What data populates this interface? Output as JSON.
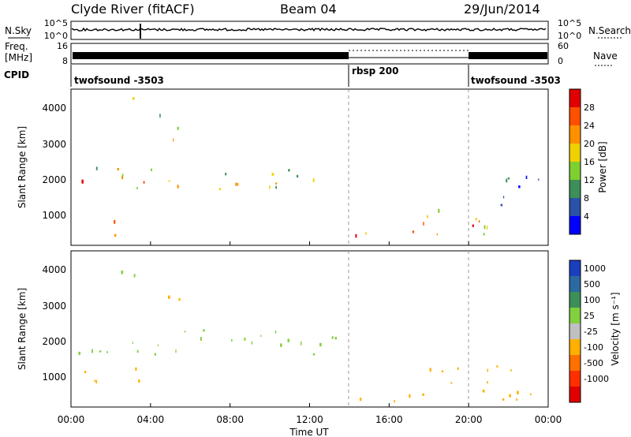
{
  "header": {
    "station": "Clyde River (fitACF)",
    "beam": "Beam 04",
    "date": "29/Jun/2014"
  },
  "noise_panel": {
    "left_label": "N.Sky",
    "left_ticks": [
      "10^5",
      "10^0"
    ],
    "right_label": "N.Search",
    "right_ticks": [
      "10^5",
      "10^0"
    ]
  },
  "freq_panel": {
    "left_label_1": "Freq.",
    "left_label_2": "[MHz]",
    "left_ticks": [
      "16",
      "8"
    ],
    "right_label": "Nave",
    "right_ticks": [
      "60",
      "0"
    ]
  },
  "cpid": {
    "label": "CPID",
    "segments": [
      {
        "name": "twofsound -3503"
      },
      {
        "name": "rbsp 200"
      },
      {
        "name": "twofsound -3503"
      }
    ]
  },
  "power_panel": {
    "ylabel": "Slant Range [km]",
    "yticks": [
      "4000",
      "3000",
      "2000",
      "1000"
    ],
    "colorbar_label": "Power [dB]",
    "colorbar_ticks": [
      "28",
      "24",
      "20",
      "16",
      "12",
      "8",
      "4"
    ],
    "colors": [
      "#0000ff",
      "#2a52a8",
      "#3d8f5a",
      "#7ecf30",
      "#f0d000",
      "#ff9000",
      "#ff5000",
      "#e00000"
    ]
  },
  "velocity_panel": {
    "ylabel": "Slant Range [km]",
    "yticks": [
      "4000",
      "3000",
      "2000",
      "1000"
    ],
    "colorbar_label": "Velocity [m s⁻¹]",
    "colorbar_ticks": [
      "1000",
      "500",
      "100",
      "25",
      "-25",
      "-100",
      "-500",
      "-1000"
    ],
    "colors": [
      "#1a3fc0",
      "#2a6aa0",
      "#3d8f5a",
      "#80d040",
      "#c0c0c0",
      "#ffb000",
      "#ff7000",
      "#ff3000",
      "#e00000"
    ]
  },
  "x_axis": {
    "label": "Time UT",
    "ticks": [
      "00:00",
      "04:00",
      "08:00",
      "12:00",
      "16:00",
      "20:00",
      "00:00"
    ]
  },
  "chart_data": [
    {
      "type": "heatmap",
      "title": "Power [dB]",
      "xlabel": "Time UT",
      "ylabel": "Slant Range [km]",
      "xlim_hours": [
        0,
        24
      ],
      "ylim": [
        180,
        4500
      ],
      "colorbar_range": [
        3,
        31
      ],
      "regions": [
        {
          "t0": 0.2,
          "t1": 12.5,
          "r0": 1700,
          "r1": 2400,
          "value": 18
        },
        {
          "t0": 0.5,
          "t1": 4.0,
          "r0": 1900,
          "r1": 2200,
          "value": 24
        },
        {
          "t0": 1.5,
          "t1": 2.5,
          "r0": 400,
          "r1": 1100,
          "value": 22
        },
        {
          "t0": 14.0,
          "t1": 16.5,
          "r0": 300,
          "r1": 650,
          "value": 24
        },
        {
          "t0": 16.5,
          "t1": 22.0,
          "r0": 500,
          "r1": 1200,
          "value": 20
        },
        {
          "t0": 19.0,
          "t1": 21.0,
          "r0": 600,
          "r1": 1100,
          "value": 26
        },
        {
          "t0": 2.5,
          "t1": 4.5,
          "r0": 3800,
          "r1": 4300,
          "value": 12
        },
        {
          "t0": 4.0,
          "t1": 6.0,
          "r0": 3100,
          "r1": 3500,
          "value": 16
        },
        {
          "t0": 21.0,
          "t1": 24.0,
          "r0": 1200,
          "r1": 2200,
          "value": 8
        }
      ]
    },
    {
      "type": "heatmap",
      "title": "Velocity [m s-1]",
      "xlabel": "Time UT",
      "ylabel": "Slant Range [km]",
      "xlim_hours": [
        0,
        24
      ],
      "ylim": [
        180,
        4500
      ],
      "colorbar_range": [
        -1000,
        1000
      ],
      "regions": [
        {
          "t0": 0.2,
          "t1": 13.5,
          "r0": 1600,
          "r1": 2400,
          "value": 0
        },
        {
          "t0": 0.2,
          "t1": 3.5,
          "r0": 600,
          "r1": 1300,
          "value": -200
        },
        {
          "t0": 14.0,
          "t1": 16.5,
          "r0": 300,
          "r1": 650,
          "value": -150
        },
        {
          "t0": 16.5,
          "t1": 23.5,
          "r0": 400,
          "r1": 1400,
          "value": -200
        },
        {
          "t0": 4.0,
          "t1": 6.0,
          "r0": 3100,
          "r1": 3500,
          "value": -150
        },
        {
          "t0": 2.5,
          "t1": 4.5,
          "r0": 3800,
          "r1": 4300,
          "value": 0
        }
      ]
    }
  ]
}
